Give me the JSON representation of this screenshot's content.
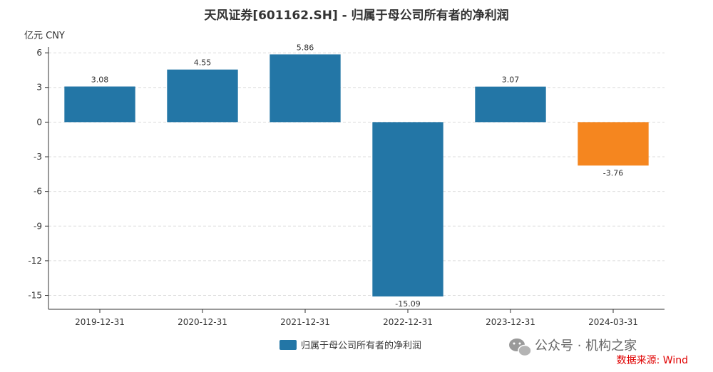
{
  "chart_data": {
    "type": "bar",
    "title": "天风证券[601162.SH] - 归属于母公司所有者的净利润",
    "unit_label": "亿元  CNY",
    "categories": [
      "2019-12-31",
      "2020-12-31",
      "2021-12-31",
      "2022-12-31",
      "2023-12-31",
      "2024-03-31"
    ],
    "values": [
      3.08,
      4.55,
      5.86,
      -15.09,
      3.07,
      -3.76
    ],
    "value_labels": [
      "3.08",
      "4.55",
      "5.86",
      "-15.09",
      "3.07",
      "-3.76"
    ],
    "bar_colors": [
      "#2376a6",
      "#2376a6",
      "#2376a6",
      "#2376a6",
      "#2376a6",
      "#f5861f"
    ],
    "ylim": [
      -16.2,
      6.5
    ],
    "yticks": [
      6,
      3,
      0,
      -3,
      -6,
      -9,
      -12,
      -15
    ],
    "grid": true,
    "legend": {
      "position": "bottom",
      "label": "归属于母公司所有者的净利润",
      "color": "#2376a6"
    }
  },
  "watermark": "公众号 · 机构之家",
  "source": "数据来源: Wind"
}
